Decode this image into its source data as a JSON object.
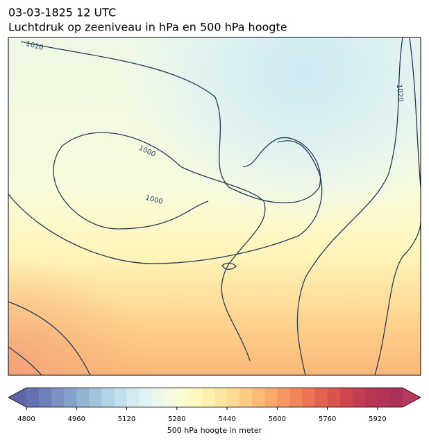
{
  "chart_data": {
    "type": "map",
    "title": "03-03-1825 12 UTC",
    "subtitle": "Luchtdruk op zeeniveau in hPa en 500 hPa hoogte",
    "contour_labels": [
      1010,
      1000,
      1000,
      1020
    ],
    "colorbar": {
      "label": "500 hPa hoogte in meter",
      "lim": [
        4800,
        6000
      ],
      "ticks": [
        4800,
        4960,
        5120,
        5280,
        5440,
        5600,
        5760,
        5920
      ],
      "colors": [
        "#6470b0",
        "#6e80b8",
        "#7a91c1",
        "#86a2ca",
        "#93b4d4",
        "#a1c5dd",
        "#b1d4e6",
        "#c2e1ec",
        "#d2ebf1",
        "#e0f3f4",
        "#ecf7ec",
        "#f4f9e0",
        "#fbfbd2",
        "#fff8c1",
        "#fff0b0",
        "#ffe6a0",
        "#feda92",
        "#fdcb84",
        "#fcbb78",
        "#faa96c",
        "#f79762",
        "#f2855a",
        "#ec7455",
        "#e46350",
        "#da544e",
        "#cf474e",
        "#c33d50",
        "#b93652",
        "#b23356",
        "#ac3159"
      ],
      "extend_colors": [
        "#5f66a8",
        "#b53a5c"
      ]
    }
  }
}
